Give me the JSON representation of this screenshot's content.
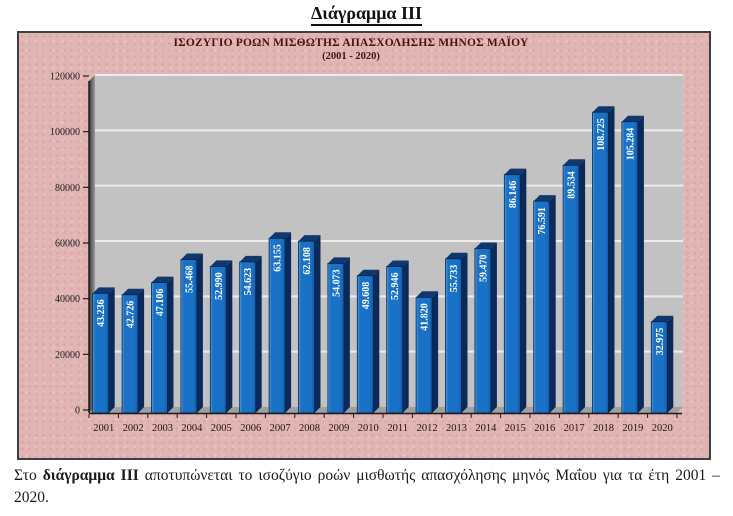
{
  "page_title": "Διάγραμμα III",
  "chart_data": {
    "type": "bar",
    "title": "ΙΣΟΖΥΓΙΟ ΡΟΩΝ ΜΙΣΘΩΤΗΣ ΑΠΑΣΧΟΛΗΣΗΣ ΜΗΝΟΣ  ΜΑΪΟΥ",
    "subtitle": "(2001 - 2020)",
    "categories": [
      "2001",
      "2002",
      "2003",
      "2004",
      "2005",
      "2006",
      "2007",
      "2008",
      "2009",
      "2010",
      "2011",
      "2012",
      "2013",
      "2014",
      "2015",
      "2016",
      "2017",
      "2018",
      "2019",
      "2020"
    ],
    "values": [
      43236,
      42726,
      47106,
      55468,
      52990,
      54623,
      63155,
      62108,
      54073,
      49608,
      52946,
      41820,
      55733,
      59470,
      86146,
      76591,
      89534,
      108725,
      105284,
      32975
    ],
    "bar_labels": [
      "43.236",
      "42.726",
      "47.106",
      "55.468",
      "52.990",
      "54.623",
      "63.155",
      "62.108",
      "54.073",
      "49.608",
      "52.946",
      "41.820",
      "55.733",
      "59.470",
      "86.146",
      "76.591",
      "89.534",
      "108.725",
      "105.284",
      "32.975"
    ],
    "ylim": [
      0,
      120000
    ],
    "y_ticks": [
      0,
      20000,
      40000,
      60000,
      80000,
      100000,
      120000
    ],
    "y_tick_labels": [
      "0",
      "20000",
      "40000",
      "60000",
      "80000",
      "100000",
      "120000"
    ],
    "grid": true,
    "legend": "none",
    "style_3d": true,
    "colors": {
      "bar_face": "#1a72c6",
      "bar_face_light": "#66a3dd",
      "bar_face_dark": "#0f5ca8",
      "bar_side": "#0a2a5c",
      "bar_top": "#11386e",
      "bar_outline": "#06224a",
      "wall": "#c2c2c2",
      "wall_grid": "#ebebeb",
      "left_wall_dark": "#3a3a3a",
      "left_wall_light": "#9a9a9a",
      "floor": "#a0a0a0",
      "axis": "#1c1c1c",
      "tick_text": "#1a1a1a",
      "category_text": "#241510",
      "bar_label_text": "#ffffff",
      "frame_background": "#e2b5b5",
      "title_text": "#45150c"
    }
  },
  "caption": {
    "prefix": "Στο ",
    "bold": "διάγραμμα III",
    "suffix": " αποτυπώνεται το ισοζύγιο ροών μισθωτής απασχόλησης μηνός  Μαΐου για τα έτη 2001 – 2020."
  }
}
